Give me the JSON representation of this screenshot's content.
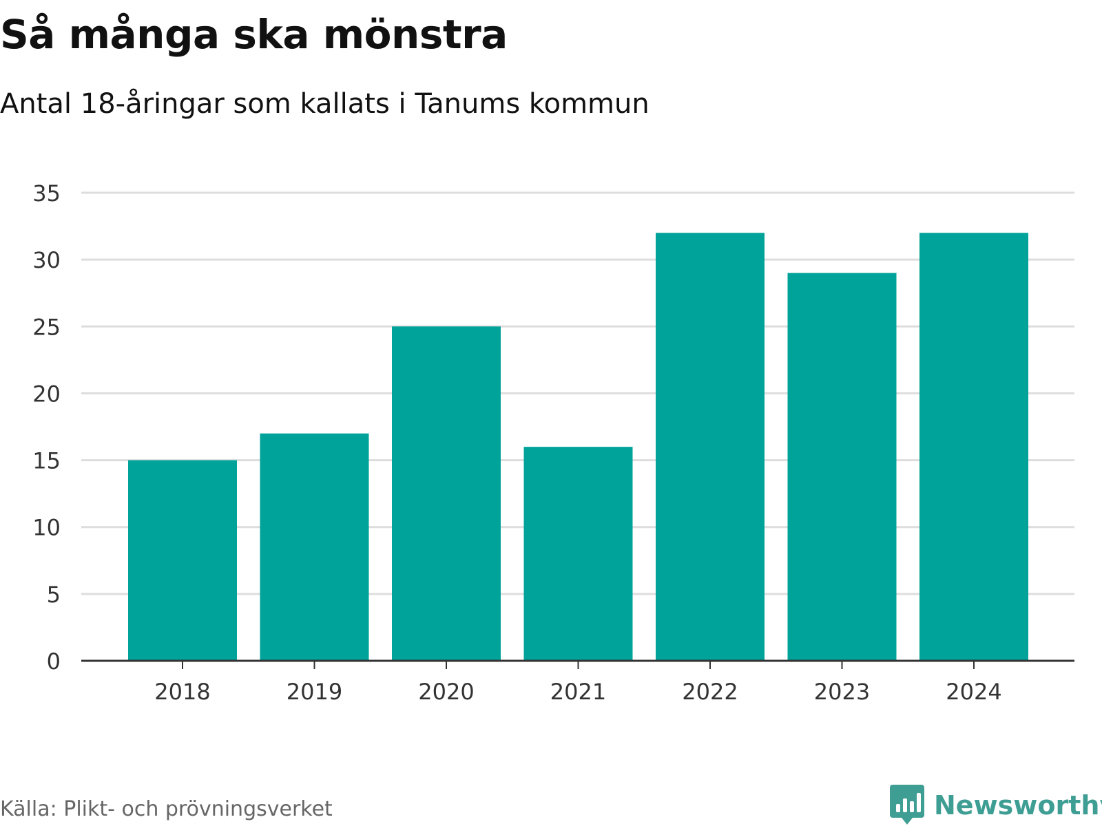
{
  "header": {
    "title": "Så många ska mönstra",
    "subtitle": "Antal 18-åringar som kallats i Tanums kommun"
  },
  "footer": {
    "source": "Källa: Plikt- och prövningsverket",
    "brand": "Newsworthy",
    "logo_icon": "newsworthy-logo-icon"
  },
  "colors": {
    "bar": "#00a39a",
    "grid": "#dddddd",
    "axis": "#333333",
    "brand": "#3f9e94",
    "text": "#111111",
    "muted": "#666666"
  },
  "chart_data": {
    "type": "bar",
    "title": "Så många ska mönstra",
    "subtitle": "Antal 18-åringar som kallats i Tanums kommun",
    "xlabel": "",
    "ylabel": "",
    "categories": [
      "2018",
      "2019",
      "2020",
      "2021",
      "2022",
      "2023",
      "2024"
    ],
    "values": [
      15,
      17,
      25,
      16,
      32,
      29,
      32
    ],
    "ylim": [
      0,
      35
    ],
    "yticks": [
      0,
      5,
      10,
      15,
      20,
      25,
      30,
      35
    ],
    "grid": true,
    "legend": "none"
  }
}
